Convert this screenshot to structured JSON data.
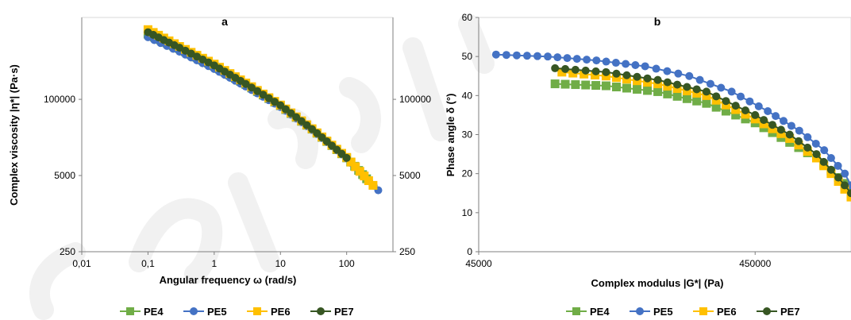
{
  "chart_data": [
    {
      "type": "scatter",
      "panel_label": "a",
      "xlabel": "Angular frequency ω (rad/s)",
      "ylabel": "Complex viscosity |η*| (Pa·s)",
      "xscale": "log",
      "yscale": "log",
      "xlim": [
        0.01,
        500
      ],
      "ylim": [
        250,
        2500000
      ],
      "x_ticks": [
        0.01,
        0.1,
        1,
        10,
        100
      ],
      "x_tick_labels": [
        "0,01",
        "0,1",
        "1",
        "10",
        "100"
      ],
      "y_ticks": [
        250,
        5000,
        100000
      ],
      "y_tick_labels": [
        "250",
        "5000",
        "100000"
      ],
      "secondary_y_tick_labels": [
        "250",
        "5000",
        "100000"
      ],
      "grid": false,
      "legend_position": "bottom",
      "series": [
        {
          "name": "PE4",
          "color": "#70ad47",
          "marker": "square",
          "x": [
            0.1,
            0.3,
            1,
            3,
            10,
            30,
            100,
            200
          ],
          "y": [
            1300000,
            730000,
            370000,
            180000,
            78000,
            31000,
            10000,
            4400
          ]
        },
        {
          "name": "PE5",
          "color": "#4472c4",
          "marker": "circle",
          "x": [
            0.1,
            0.3,
            1,
            3,
            10,
            30,
            100,
            300
          ],
          "y": [
            1150000,
            650000,
            330000,
            165000,
            74000,
            30000,
            9800,
            2800
          ]
        },
        {
          "name": "PE6",
          "color": "#ffc000",
          "marker": "square",
          "x": [
            0.1,
            0.3,
            1,
            3,
            10,
            30,
            100,
            250
          ],
          "y": [
            1550000,
            800000,
            400000,
            190000,
            80000,
            31500,
            10200,
            3400
          ]
        },
        {
          "name": "PE7",
          "color": "#375623",
          "marker": "circle",
          "x": [
            0.1,
            0.3,
            1,
            3,
            10,
            30,
            100
          ],
          "y": [
            1400000,
            760000,
            380000,
            183000,
            79000,
            31000,
            10000
          ]
        }
      ]
    },
    {
      "type": "scatter",
      "panel_label": "b",
      "xlabel": "Complex modulus |G*| (Pa)",
      "ylabel": "Phase angle δ (°)",
      "xscale": "log",
      "yscale": "linear",
      "xlim": [
        45000,
        1000000
      ],
      "ylim": [
        0,
        60
      ],
      "x_ticks": [
        45000,
        450000
      ],
      "x_tick_labels": [
        "45000",
        "450000"
      ],
      "y_ticks": [
        0,
        10,
        20,
        30,
        40,
        50,
        60
      ],
      "y_tick_labels": [
        "0",
        "10",
        "20",
        "30",
        "40",
        "50",
        "60"
      ],
      "grid": false,
      "legend_position": "bottom",
      "series": [
        {
          "name": "PE4",
          "color": "#70ad47",
          "marker": "square",
          "x": [
            85000,
            130000,
            200000,
            300000,
            450000,
            600000,
            750000,
            900000,
            1000000
          ],
          "y": [
            43,
            42.5,
            41,
            38,
            33,
            28,
            24,
            19,
            16
          ]
        },
        {
          "name": "PE5",
          "color": "#4472c4",
          "marker": "circle",
          "x": [
            52000,
            80000,
            120000,
            180000,
            260000,
            370000,
            500000,
            650000,
            800000,
            950000,
            1000000
          ],
          "y": [
            50.5,
            50,
            49,
            47.5,
            45,
            41,
            36,
            31,
            26,
            20,
            17
          ]
        },
        {
          "name": "PE6",
          "color": "#ffc000",
          "marker": "square",
          "x": [
            90000,
            130000,
            200000,
            300000,
            450000,
            600000,
            750000,
            900000,
            1000000
          ],
          "y": [
            46,
            45,
            43,
            40,
            34,
            29,
            24,
            18,
            14
          ]
        },
        {
          "name": "PE7",
          "color": "#375623",
          "marker": "circle",
          "x": [
            85000,
            130000,
            200000,
            300000,
            450000,
            600000,
            750000,
            900000,
            1000000
          ],
          "y": [
            47,
            46,
            44,
            41,
            35,
            30,
            25,
            19,
            15
          ]
        }
      ]
    }
  ]
}
